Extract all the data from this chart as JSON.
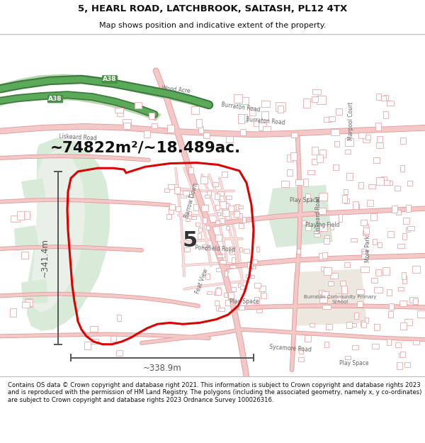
{
  "title_line1": "5, HEARL ROAD, LATCHBROOK, SALTASH, PL12 4TX",
  "title_line2": "Map shows position and indicative extent of the property.",
  "area_text": "~74822m²/~18.489ac.",
  "width_label": "~338.9m",
  "height_label": "~341.4m",
  "parcel_number": "5",
  "footer_text": "Contains OS data © Crown copyright and database right 2021. This information is subject to Crown copyright and database rights 2023 and is reproduced with the permission of HM Land Registry. The polygons (including the associated geometry, namely x, y co-ordinates) are subject to Crown copyright and database rights 2023 Ordnance Survey 100026316.",
  "map_bg": "#ffffff",
  "road_color": "#f5c8c8",
  "road_outline": "#e09898",
  "green_area": "#d8ead8",
  "green_a38": "#b8d8b0",
  "parcel_edge": "#dd0000",
  "parcel_edge_width": 2.2,
  "dim_line_color": "#555555",
  "text_dark": "#111111",
  "header_bg": "#ffffff",
  "footer_bg": "#ffffff",
  "building_fill": "#ffffff",
  "building_edge": "#e8aaaa"
}
